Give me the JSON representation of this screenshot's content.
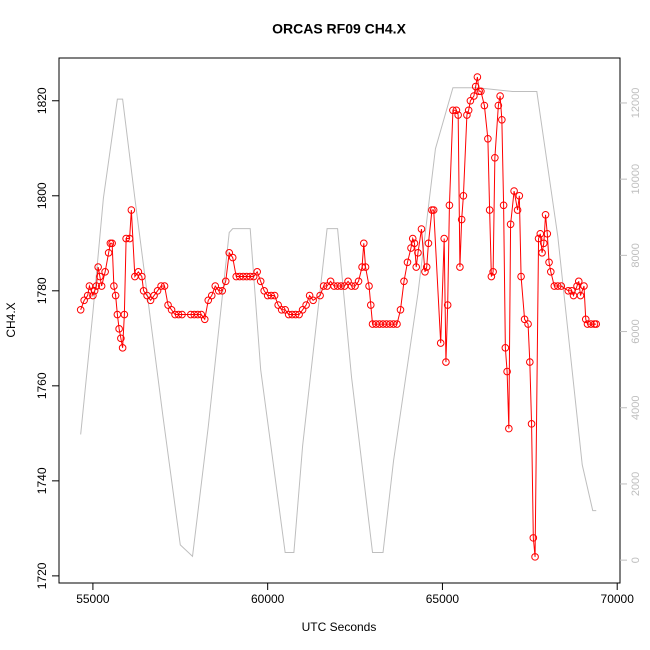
{
  "chart_data": {
    "type": "line",
    "title": "ORCAS RF09 CH4.X",
    "xlabel": "UTC Seconds",
    "ylabel": "CH4.X",
    "xlim": [
      54030,
      70080
    ],
    "ylim": [
      1718.5,
      1829
    ],
    "y2lim": [
      -600,
      13180
    ],
    "xticks": [
      55000,
      60000,
      65000,
      70000
    ],
    "yticks": [
      1720,
      1740,
      1760,
      1780,
      1800,
      1820
    ],
    "y2ticks": [
      0,
      2000,
      4000,
      6000,
      8000,
      10000,
      12000
    ],
    "y2color": "#bebebe",
    "series": [
      {
        "color": "#ff0000",
        "marker": "circle",
        "x": [
          54650,
          54750,
          54850,
          54900,
          55000,
          55050,
          55100,
          55150,
          55200,
          55250,
          55350,
          55450,
          55500,
          55550,
          55600,
          55650,
          55700,
          55750,
          55800,
          55850,
          55900,
          55950,
          56050,
          56100,
          56200,
          56300,
          56400,
          56450,
          56550,
          56650,
          56750,
          56850,
          56950,
          57050,
          57150,
          57250,
          57350,
          57450,
          57550,
          57800,
          57900,
          58000,
          58100,
          58200,
          58300,
          58400,
          58500,
          58600,
          58700,
          58800,
          58900,
          59000,
          59100,
          59200,
          59300,
          59400,
          59500,
          59600,
          59700,
          59800,
          59900,
          60000,
          60100,
          60200,
          60300,
          60400,
          60500,
          60600,
          60700,
          60800,
          60900,
          61000,
          61100,
          61200,
          61300,
          61500,
          61600,
          61700,
          61800,
          61900,
          62000,
          62100,
          62200,
          62300,
          62400,
          62500,
          62600,
          62700,
          62750,
          62800,
          62900,
          62950,
          63000,
          63100,
          63200,
          63300,
          63400,
          63500,
          63600,
          63700,
          63800,
          63900,
          64000,
          64100,
          64150,
          64200,
          64250,
          64300,
          64400,
          64500,
          64550,
          64600,
          64700,
          64750,
          64950,
          65050,
          65100,
          65150,
          65200,
          65300,
          65400,
          65450,
          65500,
          65550,
          65600,
          65700,
          65750,
          65800,
          65900,
          65950,
          66000,
          66050,
          66100,
          66200,
          66300,
          66350,
          66400,
          66450,
          66500,
          66600,
          66650,
          66700,
          66750,
          66800,
          66850,
          66900,
          66950,
          67050,
          67150,
          67200,
          67250,
          67350,
          67450,
          67500,
          67550,
          67600,
          67650,
          67750,
          67800,
          67850,
          67900,
          67950,
          68000,
          68050,
          68100,
          68200,
          68300,
          68400,
          68600,
          68700,
          68750,
          68850,
          68900,
          68950,
          69050,
          69100,
          69150,
          69250,
          69350,
          69400
        ],
        "values": [
          1776,
          1778,
          1779,
          1781,
          1779,
          1780,
          1781,
          1785,
          1783,
          1781,
          1784,
          1788,
          1790,
          1790,
          1781,
          1779,
          1775,
          1772,
          1770,
          1768,
          1775,
          1791,
          1791,
          1797,
          1783,
          1784,
          1783,
          1780,
          1779,
          1778,
          1779,
          1780,
          1781,
          1781,
          1777,
          1776,
          1775,
          1775,
          1775,
          1775,
          1775,
          1775,
          1775,
          1774,
          1778,
          1779,
          1781,
          1780,
          1780,
          1782,
          1788,
          1787,
          1783,
          1783,
          1783,
          1783,
          1783,
          1783,
          1784,
          1782,
          1780,
          1779,
          1779,
          1779,
          1777,
          1776,
          1776,
          1775,
          1775,
          1775,
          1775,
          1776,
          1777,
          1779,
          1778,
          1779,
          1781,
          1781,
          1782,
          1781,
          1781,
          1781,
          1781,
          1782,
          1781,
          1781,
          1782,
          1785,
          1790,
          1785,
          1781,
          1777,
          1773,
          1773,
          1773,
          1773,
          1773,
          1773,
          1773,
          1773,
          1776,
          1782,
          1786,
          1789,
          1791,
          1790,
          1785,
          1788,
          1793,
          1784,
          1785,
          1790,
          1797,
          1797,
          1769,
          1791,
          1765,
          1777,
          1798,
          1818,
          1818,
          1817,
          1785,
          1795,
          1800,
          1817,
          1818,
          1820,
          1821,
          1823,
          1825,
          1822,
          1822,
          1819,
          1812,
          1797,
          1783,
          1784,
          1808,
          1819,
          1821,
          1816,
          1798,
          1768,
          1763,
          1751,
          1794,
          1801,
          1797,
          1800,
          1783,
          1774,
          1773,
          1765,
          1752,
          1728,
          1724,
          1791,
          1792,
          1788,
          1790,
          1796,
          1792,
          1786,
          1784,
          1781,
          1781,
          1781,
          1780,
          1780,
          1779,
          1781,
          1782,
          1779,
          1781,
          1774,
          1773,
          1773,
          1773,
          1773
        ]
      },
      {
        "color": "#bebebe",
        "axis": "y2",
        "x": [
          54650,
          55000,
          55300,
          55700,
          55850,
          56200,
          57000,
          57500,
          57850,
          58300,
          58900,
          59000,
          59500,
          59800,
          60500,
          60750,
          61000,
          61700,
          62000,
          62400,
          63000,
          63300,
          63600,
          64300,
          64800,
          65300,
          66000,
          67000,
          67700,
          68300,
          69000,
          69300,
          69400
        ],
        "values": [
          3300,
          6500,
          9500,
          12100,
          12100,
          9500,
          3800,
          400,
          100,
          3500,
          8600,
          8700,
          8700,
          5000,
          200,
          200,
          3000,
          8700,
          8700,
          4800,
          200,
          200,
          2600,
          7000,
          10800,
          12400,
          12400,
          12300,
          12300,
          8500,
          2500,
          1300,
          1300
        ]
      }
    ]
  }
}
